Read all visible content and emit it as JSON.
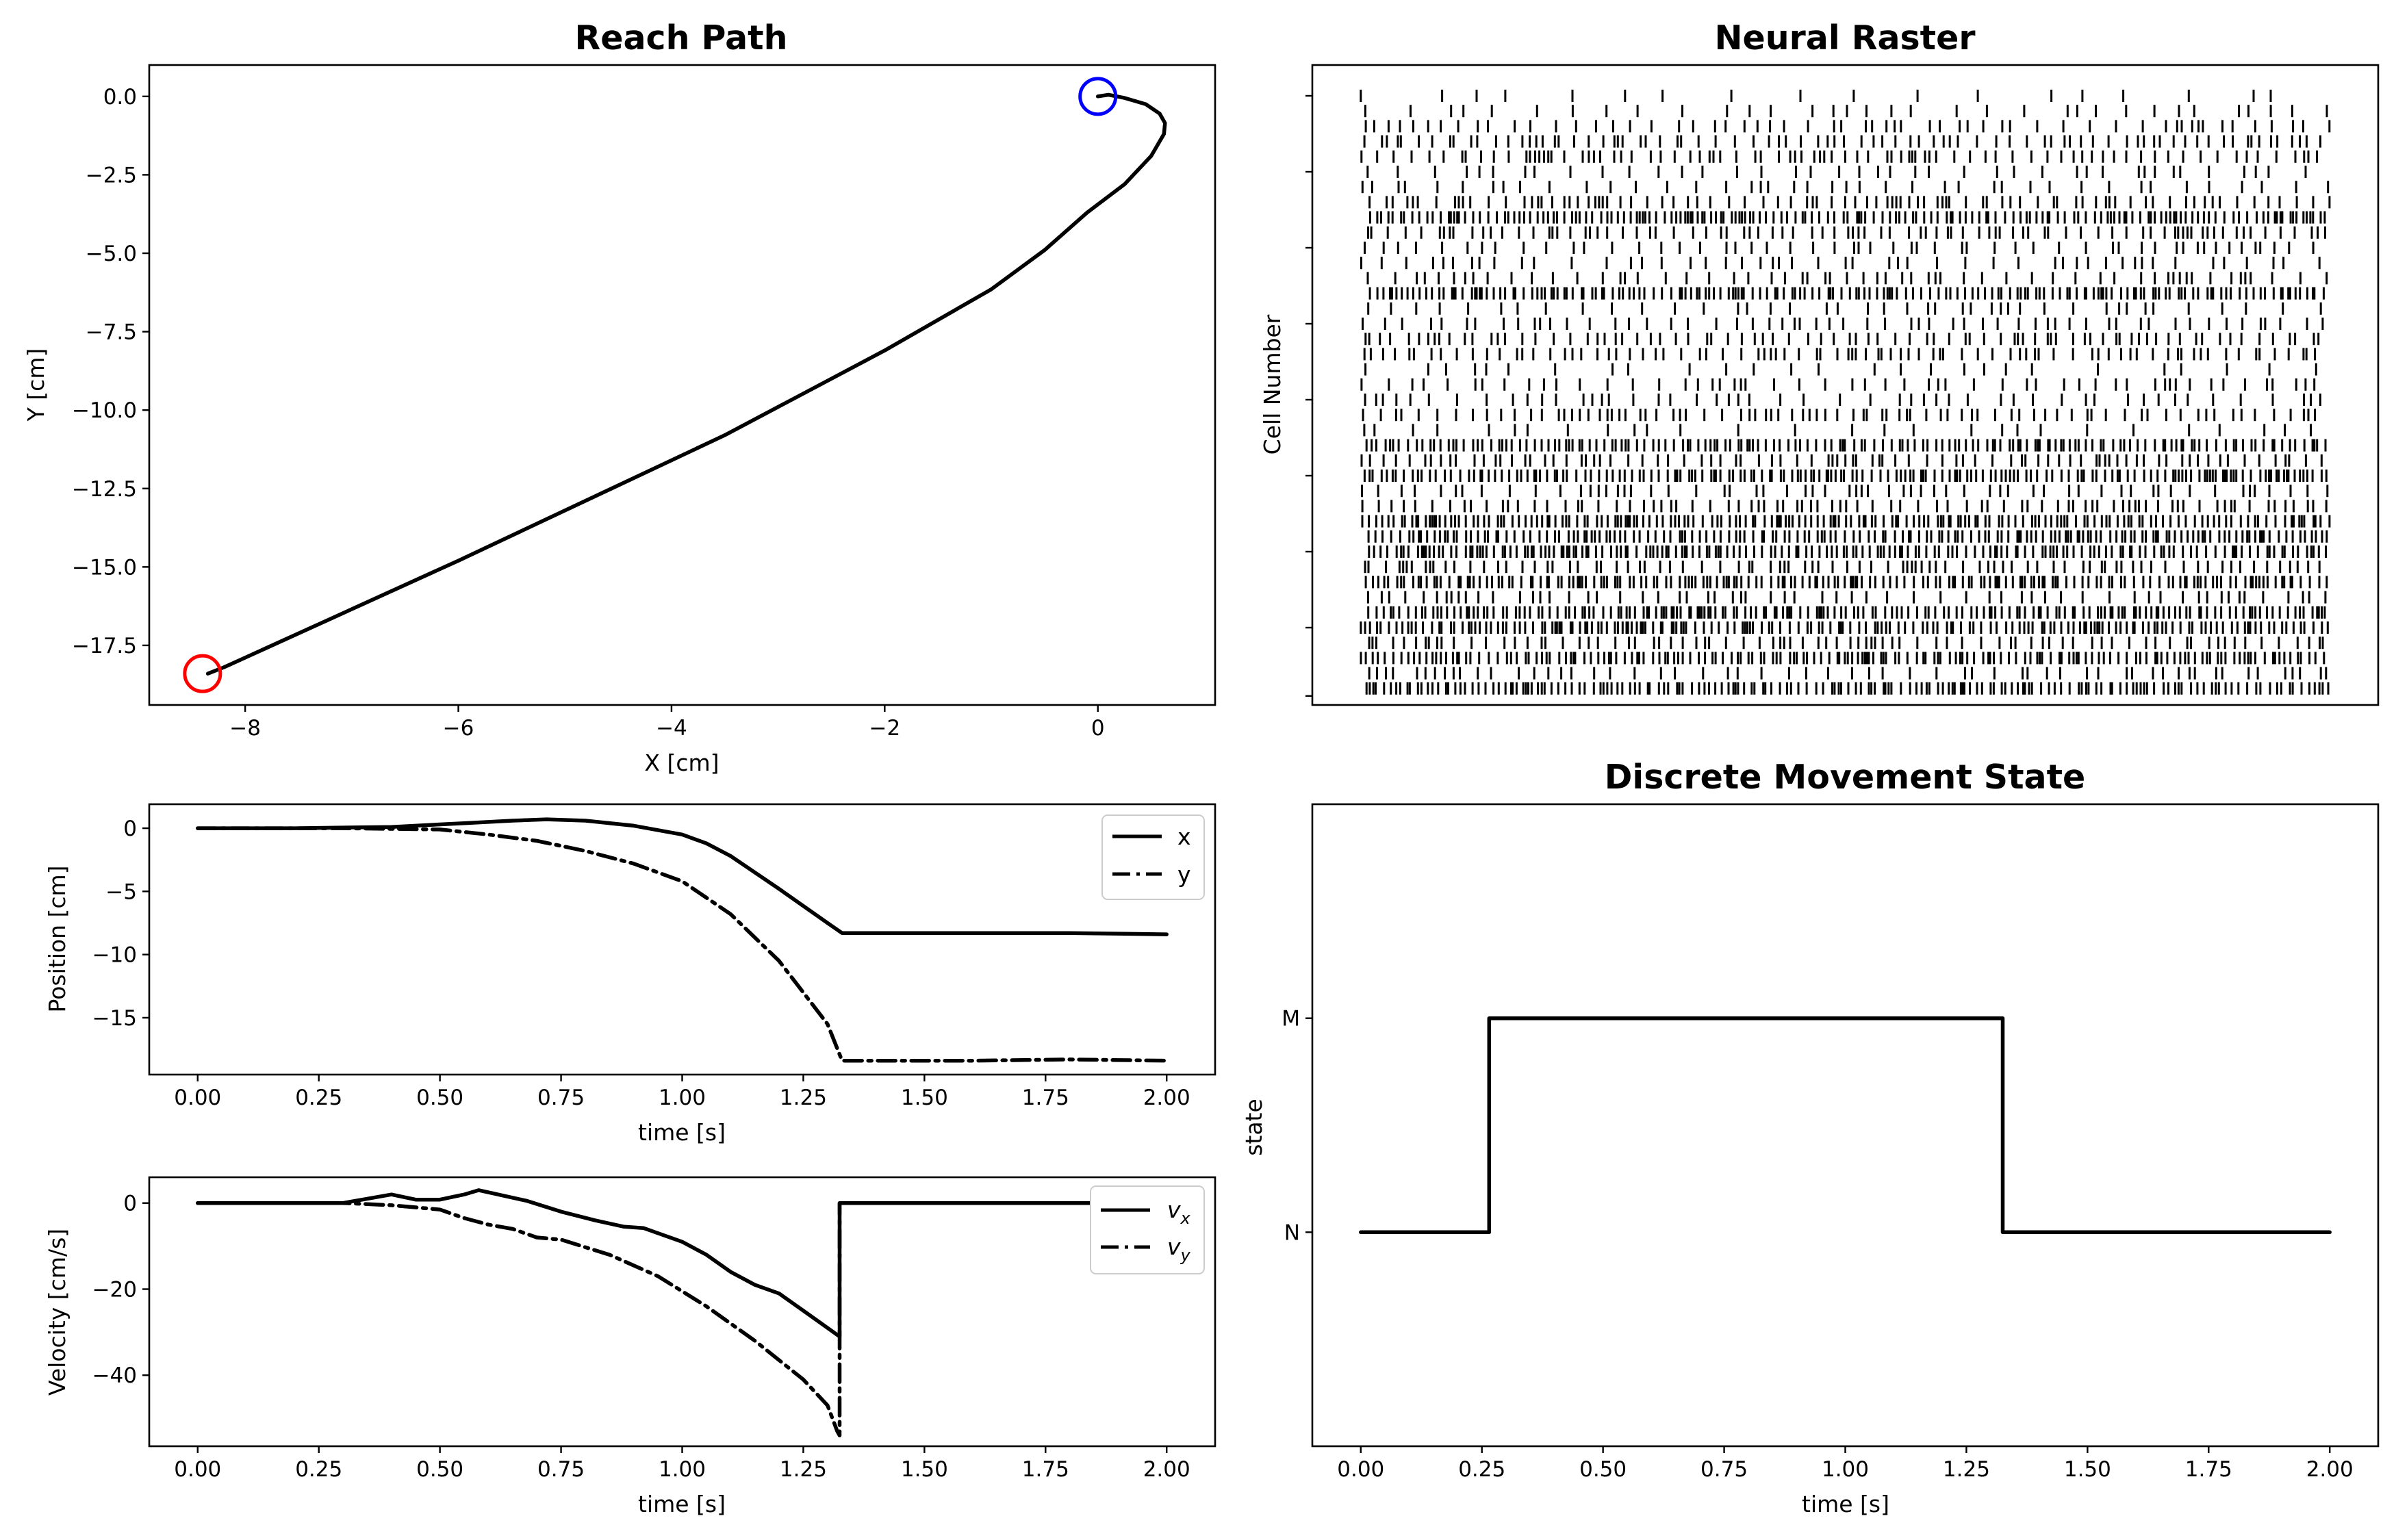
{
  "chart_data": [
    {
      "id": "reach",
      "type": "line",
      "title": "Reach Path",
      "xlabel": "X [cm]",
      "ylabel": "Y [cm]",
      "xlim": [
        -8.9,
        1.1
      ],
      "ylim": [
        -19.4,
        1.0
      ],
      "xticks": [
        -8,
        -6,
        -4,
        -2,
        0
      ],
      "xtick_labels": [
        "−8",
        "−6",
        "−4",
        "−2",
        "0"
      ],
      "yticks": [
        0,
        -2.5,
        -5,
        -7.5,
        -10,
        -12.5,
        -15,
        -17.5
      ],
      "ytick_labels": [
        "0.0",
        "−2.5",
        "−5.0",
        "−7.5",
        "−10.0",
        "−12.5",
        "−15.0",
        "−17.5"
      ],
      "series": [
        {
          "style": "solid",
          "color": "#000000",
          "x": [
            -8.35,
            -8.2,
            -6.0,
            -3.5,
            -2.0,
            -1.0,
            -0.5,
            -0.1,
            0.25,
            0.5,
            0.62,
            0.63,
            0.58,
            0.45,
            0.25,
            0.1,
            0.0
          ],
          "y": [
            -18.4,
            -18.2,
            -14.8,
            -10.8,
            -8.1,
            -6.15,
            -4.9,
            -3.7,
            -2.8,
            -1.9,
            -1.2,
            -0.85,
            -0.55,
            -0.25,
            -0.05,
            0.05,
            0.0
          ]
        }
      ],
      "markers": [
        {
          "name": "start",
          "x": 0.0,
          "y": 0.0,
          "color": "#0000ff"
        },
        {
          "name": "end",
          "x": -8.4,
          "y": -18.4,
          "color": "#ff0000"
        }
      ]
    },
    {
      "id": "position",
      "type": "line",
      "title": "",
      "xlabel": "time [s]",
      "ylabel": "Position [cm]",
      "xlim": [
        -0.1,
        2.1
      ],
      "ylim": [
        -19.5,
        1.9
      ],
      "xticks": [
        0,
        0.25,
        0.5,
        0.75,
        1.0,
        1.25,
        1.5,
        1.75,
        2.0
      ],
      "xtick_labels": [
        "0.00",
        "0.25",
        "0.50",
        "0.75",
        "1.00",
        "1.25",
        "1.50",
        "1.75",
        "2.00"
      ],
      "yticks": [
        0,
        -5,
        -10,
        -15
      ],
      "ytick_labels": [
        "0",
        "−5",
        "−10",
        "−15"
      ],
      "legend": "upper right",
      "series": [
        {
          "name": "x",
          "style": "solid",
          "color": "#000000",
          "x": [
            0,
            0.2,
            0.4,
            0.55,
            0.65,
            0.72,
            0.8,
            0.9,
            1.0,
            1.05,
            1.1,
            1.2,
            1.3,
            1.33,
            1.4,
            1.6,
            1.8,
            2.0
          ],
          "y": [
            0,
            0,
            0.1,
            0.4,
            0.6,
            0.7,
            0.6,
            0.2,
            -0.5,
            -1.2,
            -2.2,
            -4.8,
            -7.5,
            -8.3,
            -8.3,
            -8.3,
            -8.3,
            -8.4
          ]
        },
        {
          "name": "y",
          "style": "dashdot",
          "color": "#000000",
          "x": [
            0,
            0.3,
            0.5,
            0.6,
            0.7,
            0.8,
            0.9,
            1.0,
            1.1,
            1.2,
            1.3,
            1.33,
            1.4,
            1.6,
            1.8,
            2.0
          ],
          "y": [
            0,
            0,
            -0.1,
            -0.5,
            -1.0,
            -1.8,
            -2.8,
            -4.2,
            -6.8,
            -10.5,
            -15.5,
            -18.4,
            -18.4,
            -18.4,
            -18.3,
            -18.4
          ]
        }
      ]
    },
    {
      "id": "velocity",
      "type": "line",
      "title": "",
      "xlabel": "time [s]",
      "ylabel": "Velocity [cm/s]",
      "xlim": [
        -0.1,
        2.1
      ],
      "ylim": [
        -56.5,
        6.0
      ],
      "xticks": [
        0,
        0.25,
        0.5,
        0.75,
        1.0,
        1.25,
        1.5,
        1.75,
        2.0
      ],
      "xtick_labels": [
        "0.00",
        "0.25",
        "0.50",
        "0.75",
        "1.00",
        "1.25",
        "1.50",
        "1.75",
        "2.00"
      ],
      "yticks": [
        0,
        -20,
        -40
      ],
      "ytick_labels": [
        "0",
        "−20",
        "−40"
      ],
      "legend": "upper right",
      "series": [
        {
          "name": "vx",
          "style": "solid",
          "color": "#000000",
          "x": [
            0,
            0.3,
            0.35,
            0.4,
            0.45,
            0.5,
            0.55,
            0.58,
            0.62,
            0.68,
            0.75,
            0.82,
            0.88,
            0.92,
            1.0,
            1.05,
            1.1,
            1.15,
            1.2,
            1.25,
            1.3,
            1.325,
            1.325,
            1.35,
            1.6,
            1.8,
            2.0
          ],
          "y": [
            0,
            0,
            1,
            2,
            0.8,
            0.8,
            2,
            3,
            2,
            0.5,
            -2,
            -4,
            -5.5,
            -5.8,
            -9,
            -12,
            -16,
            -19,
            -21,
            -25,
            -29,
            -31,
            0,
            0,
            0,
            0,
            0
          ]
        },
        {
          "name": "vy",
          "style": "dashdot",
          "color": "#000000",
          "x": [
            0,
            0.3,
            0.4,
            0.5,
            0.55,
            0.6,
            0.65,
            0.7,
            0.75,
            0.85,
            0.95,
            1.05,
            1.15,
            1.25,
            1.3,
            1.32,
            1.325,
            1.325,
            1.35,
            1.6,
            1.8,
            2.0
          ],
          "y": [
            0,
            0,
            -0.5,
            -1.5,
            -3.5,
            -5,
            -6,
            -8,
            -8.5,
            -12,
            -17,
            -24,
            -32,
            -41,
            -47,
            -53,
            -54,
            0,
            0,
            0,
            0,
            0
          ]
        }
      ]
    },
    {
      "id": "raster",
      "type": "scatter",
      "title": "Neural Raster",
      "xlabel": "",
      "ylabel": "Cell Number",
      "xlim": [
        -0.1,
        2.1
      ],
      "n_cells": 40,
      "cell_density": [
        0.09,
        0.05,
        0.03,
        0.02,
        0.02,
        0.04,
        0.04,
        0.02,
        0.01,
        0.02,
        0.03,
        0.04,
        0.03,
        0.01,
        0.04,
        0.03,
        0.02,
        0.02,
        0.07,
        0.03,
        0.04,
        0.02,
        0.07,
        0.01,
        0.02,
        0.01,
        0.03,
        0.02,
        0.01,
        0.01,
        0.01,
        0.02,
        0.01,
        0.03,
        0.01,
        0.01,
        0.02,
        0.01,
        0.03,
        0.01
      ],
      "seed": 7
    },
    {
      "id": "state",
      "type": "line",
      "title": "Discrete Movement State",
      "xlabel": "time [s]",
      "ylabel": "state",
      "xlim": [
        -0.1,
        2.1
      ],
      "ylim": [
        -1.0,
        2.0
      ],
      "xticks": [
        0,
        0.25,
        0.5,
        0.75,
        1.0,
        1.25,
        1.5,
        1.75,
        2.0
      ],
      "xtick_labels": [
        "0.00",
        "0.25",
        "0.50",
        "0.75",
        "1.00",
        "1.25",
        "1.50",
        "1.75",
        "2.00"
      ],
      "yticks": [
        0,
        1
      ],
      "ytick_labels": [
        "N",
        "M"
      ],
      "series": [
        {
          "style": "step",
          "color": "#000000",
          "x": [
            0,
            0.265,
            0.265,
            1.325,
            1.325,
            2.0
          ],
          "y": [
            0,
            0,
            1,
            1,
            0,
            0
          ]
        }
      ]
    }
  ],
  "legend_labels": {
    "x": "x",
    "y": "y",
    "vx_base": "v",
    "vx_sub": "x",
    "vy_base": "v",
    "vy_sub": "y"
  }
}
